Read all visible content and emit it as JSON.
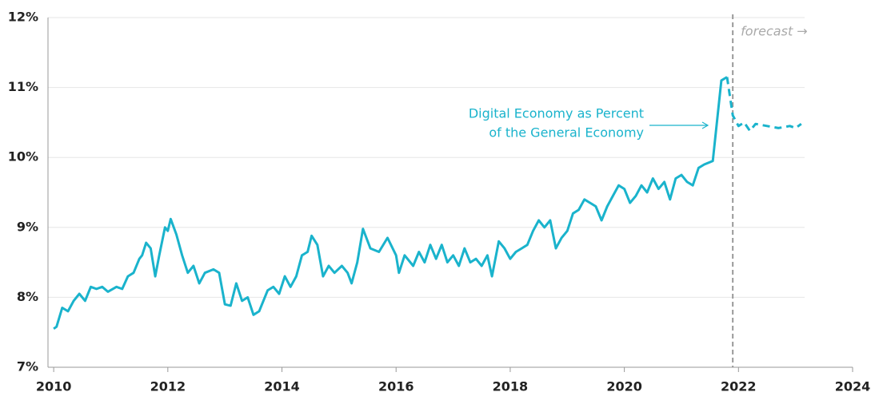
{
  "chart_data": {
    "type": "line",
    "series": [
      {
        "name": "Digital Economy as Percent of the General Economy",
        "color": "#1ab3cc",
        "line_style": "solid",
        "x": [
          2010.0,
          2010.05,
          2010.15,
          2010.25,
          2010.35,
          2010.45,
          2010.55,
          2010.65,
          2010.75,
          2010.85,
          2010.95,
          2011.1,
          2011.2,
          2011.3,
          2011.4,
          2011.5,
          2011.55,
          2011.62,
          2011.7,
          2011.78,
          2011.85,
          2011.95,
          2012.0,
          2012.05,
          2012.15,
          2012.25,
          2012.35,
          2012.45,
          2012.55,
          2012.65,
          2012.8,
          2012.9,
          2013.0,
          2013.1,
          2013.2,
          2013.3,
          2013.4,
          2013.5,
          2013.6,
          2013.75,
          2013.85,
          2013.95,
          2014.05,
          2014.15,
          2014.25,
          2014.35,
          2014.45,
          2014.52,
          2014.62,
          2014.72,
          2014.82,
          2014.92,
          2015.05,
          2015.15,
          2015.22,
          2015.32,
          2015.42,
          2015.55,
          2015.7,
          2015.85,
          2016.0,
          2016.05,
          2016.15,
          2016.3,
          2016.4,
          2016.5,
          2016.6,
          2016.7,
          2016.8,
          2016.9,
          2017.0,
          2017.1,
          2017.2,
          2017.3,
          2017.4,
          2017.5,
          2017.6,
          2017.68,
          2017.8,
          2017.9,
          2018.0,
          2018.1,
          2018.2,
          2018.3,
          2018.4,
          2018.5,
          2018.6,
          2018.7,
          2018.8,
          2018.9,
          2019.0,
          2019.1,
          2019.2,
          2019.3,
          2019.4,
          2019.5,
          2019.6,
          2019.7,
          2019.8,
          2019.9,
          2020.0,
          2020.1,
          2020.2,
          2020.3,
          2020.4,
          2020.5,
          2020.6,
          2020.7,
          2020.8,
          2020.9,
          2021.0,
          2021.1,
          2021.2,
          2021.3,
          2021.4,
          2021.55,
          2021.7,
          2021.8
        ],
        "values": [
          7.55,
          7.58,
          7.85,
          7.8,
          7.95,
          8.05,
          7.95,
          8.15,
          8.12,
          8.15,
          8.08,
          8.15,
          8.12,
          8.3,
          8.35,
          8.55,
          8.6,
          8.78,
          8.7,
          8.3,
          8.6,
          9.0,
          8.95,
          9.12,
          8.9,
          8.6,
          8.35,
          8.45,
          8.2,
          8.35,
          8.4,
          8.35,
          7.9,
          7.88,
          8.2,
          7.95,
          8.0,
          7.75,
          7.8,
          8.1,
          8.15,
          8.05,
          8.3,
          8.15,
          8.3,
          8.6,
          8.65,
          8.88,
          8.75,
          8.3,
          8.45,
          8.35,
          8.45,
          8.35,
          8.2,
          8.5,
          8.98,
          8.7,
          8.65,
          8.85,
          8.6,
          8.35,
          8.6,
          8.45,
          8.65,
          8.5,
          8.75,
          8.55,
          8.75,
          8.5,
          8.6,
          8.45,
          8.7,
          8.5,
          8.55,
          8.45,
          8.6,
          8.3,
          8.8,
          8.7,
          8.55,
          8.65,
          8.7,
          8.75,
          8.95,
          9.1,
          9.0,
          9.1,
          8.7,
          8.85,
          8.95,
          9.2,
          9.25,
          9.4,
          9.35,
          9.3,
          9.1,
          9.3,
          9.45,
          9.6,
          9.55,
          9.35,
          9.45,
          9.6,
          9.5,
          9.7,
          9.55,
          9.65,
          9.4,
          9.7,
          9.75,
          9.65,
          9.6,
          9.85,
          9.9,
          9.95,
          11.1,
          11.15
        ]
      },
      {
        "name": "forecast",
        "color": "#1ab3cc",
        "line_style": "dashed",
        "x": [
          2021.8,
          2021.9,
          2022.0,
          2022.1,
          2022.2,
          2022.3,
          2022.5,
          2022.7,
          2022.9,
          2023.0,
          2023.1
        ],
        "values": [
          11.15,
          10.6,
          10.45,
          10.5,
          10.38,
          10.48,
          10.45,
          10.42,
          10.45,
          10.42,
          10.48
        ]
      }
    ],
    "annotations": {
      "series_label": [
        "Digital Economy as Percent",
        "of the General Economy"
      ],
      "forecast_label": "forecast →",
      "forecast_start": 2021.9
    },
    "xlim": [
      2009.9,
      2024
    ],
    "xticks": [
      2010,
      2012,
      2014,
      2016,
      2018,
      2020,
      2022,
      2024
    ],
    "ylim": [
      7,
      12
    ],
    "yticks": [
      {
        "value": 7,
        "label": "7%"
      },
      {
        "value": 8,
        "label": "8%"
      },
      {
        "value": 9,
        "label": "9%"
      },
      {
        "value": 10,
        "label": "10%"
      },
      {
        "value": 11,
        "label": "11%"
      },
      {
        "value": 12,
        "label": "12%"
      }
    ],
    "grid": true
  }
}
